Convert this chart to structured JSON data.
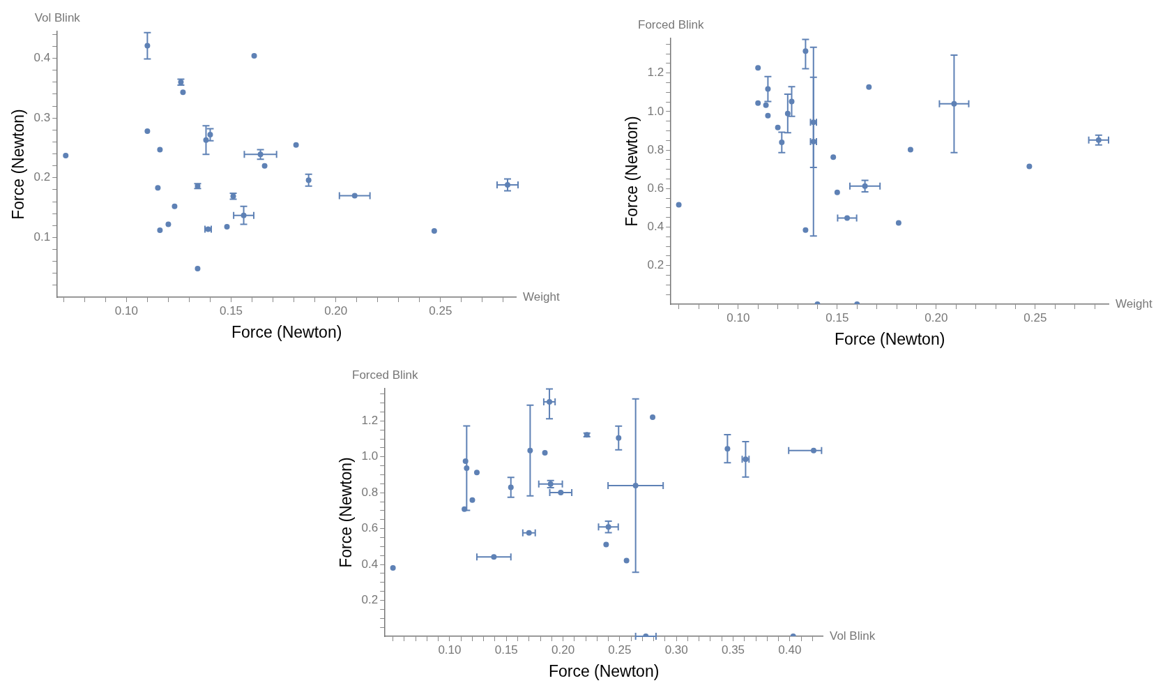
{
  "chart_data": [
    {
      "type": "scatter",
      "title": "Vol Blink",
      "xlabel": "Force (Newton)",
      "ylabel": "Force (Newton)",
      "annotations": [
        "Weight"
      ],
      "marker": "circle",
      "xlim": [
        0.067,
        0.286
      ],
      "ylim": [
        0,
        0.445
      ],
      "xticks": [
        {
          "value": 0.07,
          "label": null
        },
        {
          "value": 0.08,
          "label": null
        },
        {
          "value": 0.09,
          "label": null
        },
        {
          "value": 0.1,
          "label": "0.10"
        },
        {
          "value": 0.11,
          "label": null
        },
        {
          "value": 0.12,
          "label": null
        },
        {
          "value": 0.13,
          "label": null
        },
        {
          "value": 0.14,
          "label": null
        },
        {
          "value": 0.15,
          "label": "0.15"
        },
        {
          "value": 0.16,
          "label": null
        },
        {
          "value": 0.17,
          "label": null
        },
        {
          "value": 0.18,
          "label": null
        },
        {
          "value": 0.19,
          "label": null
        },
        {
          "value": 0.2,
          "label": "0.20"
        },
        {
          "value": 0.21,
          "label": null
        },
        {
          "value": 0.22,
          "label": null
        },
        {
          "value": 0.23,
          "label": null
        },
        {
          "value": 0.24,
          "label": null
        },
        {
          "value": 0.25,
          "label": "0.25"
        },
        {
          "value": 0.26,
          "label": null
        },
        {
          "value": 0.27,
          "label": null
        },
        {
          "value": 0.28,
          "label": null
        }
      ],
      "yticks": [
        {
          "value": 0.02,
          "label": null
        },
        {
          "value": 0.04,
          "label": null
        },
        {
          "value": 0.06,
          "label": null
        },
        {
          "value": 0.08,
          "label": null
        },
        0.1,
        {
          "value": 0.12,
          "label": null
        },
        {
          "value": 0.14,
          "label": null
        },
        {
          "value": 0.16,
          "label": null
        },
        {
          "value": 0.18,
          "label": null
        },
        0.2,
        {
          "value": 0.22,
          "label": null
        },
        {
          "value": 0.24,
          "label": null
        },
        {
          "value": 0.26,
          "label": null
        },
        {
          "value": 0.28,
          "label": null
        },
        0.3,
        {
          "value": 0.32,
          "label": null
        },
        {
          "value": 0.34,
          "label": null
        },
        {
          "value": 0.36,
          "label": null
        },
        {
          "value": 0.38,
          "label": null
        },
        0.4,
        {
          "value": 0.42,
          "label": null
        },
        {
          "value": 0.44,
          "label": null
        }
      ],
      "series": [
        {
          "color": "#5e81b5",
          "x": [
            0.11,
            0.161,
            0.126,
            0.127,
            0.11,
            0.116,
            0.071,
            0.138,
            0.14,
            0.164,
            0.166,
            0.181,
            0.187,
            0.134,
            0.115,
            0.151,
            0.123,
            0.156,
            0.209,
            0.282,
            0.12,
            0.116,
            0.139,
            0.148,
            0.134,
            0.247
          ],
          "values": [
            0.421,
            0.404,
            0.36,
            0.343,
            0.278,
            0.247,
            0.237,
            0.263,
            0.272,
            0.239,
            0.22,
            0.255,
            0.196,
            0.186,
            0.183,
            0.169,
            0.152,
            0.137,
            0.17,
            0.188,
            0.122,
            0.112,
            0.114,
            0.118,
            0.048,
            0.111
          ],
          "errors": [
            0.022,
            null,
            0.005,
            null,
            null,
            null,
            null,
            0.024,
            0.01,
            0.008,
            null,
            null,
            0.01,
            0.004,
            null,
            0.005,
            null,
            0.015,
            null,
            0.01,
            null,
            null,
            null,
            null,
            null,
            null
          ],
          "xerrors": [
            null,
            null,
            null,
            null,
            null,
            null,
            null,
            null,
            null,
            0.0077,
            null,
            null,
            null,
            null,
            null,
            null,
            null,
            0.0048,
            0.0073,
            0.005,
            null,
            null,
            0.0015,
            null,
            null,
            null
          ]
        }
      ]
    },
    {
      "type": "scatter",
      "title": "Forced Blink",
      "xlabel": "Force (Newton)",
      "ylabel": "Force (Newton)",
      "annotations": [
        "Weight"
      ],
      "marker": "circle",
      "xlim": [
        0.066,
        0.287
      ],
      "ylim": [
        0,
        1.38
      ],
      "xticks": [
        {
          "value": 0.07,
          "label": null
        },
        {
          "value": 0.08,
          "label": null
        },
        {
          "value": 0.09,
          "label": null
        },
        {
          "value": 0.1,
          "label": "0.10"
        },
        {
          "value": 0.11,
          "label": null
        },
        {
          "value": 0.12,
          "label": null
        },
        {
          "value": 0.13,
          "label": null
        },
        {
          "value": 0.14,
          "label": null
        },
        {
          "value": 0.15,
          "label": "0.15"
        },
        {
          "value": 0.16,
          "label": null
        },
        {
          "value": 0.17,
          "label": null
        },
        {
          "value": 0.18,
          "label": null
        },
        {
          "value": 0.19,
          "label": null
        },
        {
          "value": 0.2,
          "label": "0.20"
        },
        {
          "value": 0.21,
          "label": null
        },
        {
          "value": 0.22,
          "label": null
        },
        {
          "value": 0.23,
          "label": null
        },
        {
          "value": 0.24,
          "label": null
        },
        {
          "value": 0.25,
          "label": "0.25"
        },
        {
          "value": 0.26,
          "label": null
        },
        {
          "value": 0.27,
          "label": null
        },
        {
          "value": 0.28,
          "label": null
        }
      ],
      "yticks": [
        {
          "value": 0.05,
          "label": null
        },
        {
          "value": 0.1,
          "label": null
        },
        {
          "value": 0.15,
          "label": null
        },
        0.2,
        {
          "value": 0.25,
          "label": null
        },
        {
          "value": 0.3,
          "label": null
        },
        {
          "value": 0.35,
          "label": null
        },
        0.4,
        {
          "value": 0.45,
          "label": null
        },
        {
          "value": 0.5,
          "label": null
        },
        {
          "value": 0.55,
          "label": null
        },
        0.6,
        {
          "value": 0.65,
          "label": null
        },
        {
          "value": 0.7,
          "label": null
        },
        {
          "value": 0.75,
          "label": null
        },
        0.8,
        {
          "value": 0.85,
          "label": null
        },
        {
          "value": 0.9,
          "label": null
        },
        {
          "value": 0.95,
          "label": null
        },
        {
          "value": 1.0,
          "label": "1.0"
        },
        {
          "value": 1.05,
          "label": null
        },
        {
          "value": 1.1,
          "label": null
        },
        {
          "value": 1.15,
          "label": null
        },
        1.2,
        {
          "value": 1.25,
          "label": null
        },
        {
          "value": 1.3,
          "label": null
        },
        {
          "value": 1.35,
          "label": null
        }
      ],
      "series": [
        {
          "color": "#5e81b5",
          "x": [
            0.11,
            0.11,
            0.114,
            0.115,
            0.115,
            0.12,
            0.122,
            0.125,
            0.127,
            0.134,
            0.134,
            0.138,
            0.138,
            0.148,
            0.15,
            0.155,
            0.164,
            0.166,
            0.181,
            0.187,
            0.209,
            0.247,
            0.282,
            0.07,
            0.14,
            0.16
          ],
          "values": [
            1.227,
            1.044,
            1.033,
            1.117,
            0.979,
            0.917,
            0.84,
            0.99,
            1.052,
            1.314,
            0.385,
            0.944,
            0.844,
            0.763,
            0.58,
            0.447,
            0.613,
            1.127,
            0.422,
            0.802,
            1.04,
            0.715,
            0.852,
            0.516,
            0,
            0
          ],
          "errors": [
            null,
            null,
            null,
            0.065,
            null,
            null,
            0.053,
            0.1,
            0.077,
            [
              1.222,
              1.375
            ],
            null,
            0.234,
            0.49,
            null,
            null,
            null,
            0.03,
            null,
            null,
            null,
            0.253,
            null,
            0.025,
            null,
            null,
            null
          ],
          "xerrors": [
            null,
            null,
            null,
            null,
            null,
            null,
            null,
            null,
            null,
            null,
            null,
            0.0015,
            0.0015,
            null,
            null,
            0.0048,
            0.0076,
            null,
            null,
            null,
            0.0074,
            null,
            0.005,
            null,
            null,
            null
          ]
        }
      ]
    },
    {
      "type": "scatter",
      "title": "Forced Blink",
      "xlabel": "Force (Newton)",
      "ylabel": "Force (Newton)",
      "annotations": [
        "Vol Blink"
      ],
      "marker": "circle",
      "xlim": [
        0.043,
        0.429
      ],
      "ylim": [
        0,
        1.38
      ],
      "xticks": [
        {
          "value": 0.05,
          "label": null
        },
        {
          "value": 0.06,
          "label": null
        },
        {
          "value": 0.07,
          "label": null
        },
        {
          "value": 0.08,
          "label": null
        },
        {
          "value": 0.09,
          "label": null
        },
        {
          "value": 0.1,
          "label": "0.10"
        },
        {
          "value": 0.11,
          "label": null
        },
        {
          "value": 0.12,
          "label": null
        },
        {
          "value": 0.13,
          "label": null
        },
        {
          "value": 0.14,
          "label": null
        },
        {
          "value": 0.15,
          "label": "0.15"
        },
        {
          "value": 0.16,
          "label": null
        },
        {
          "value": 0.17,
          "label": null
        },
        {
          "value": 0.18,
          "label": null
        },
        {
          "value": 0.19,
          "label": null
        },
        {
          "value": 0.2,
          "label": "0.20"
        },
        {
          "value": 0.21,
          "label": null
        },
        {
          "value": 0.22,
          "label": null
        },
        {
          "value": 0.23,
          "label": null
        },
        {
          "value": 0.24,
          "label": null
        },
        {
          "value": 0.25,
          "label": "0.25"
        },
        {
          "value": 0.26,
          "label": null
        },
        {
          "value": 0.27,
          "label": null
        },
        {
          "value": 0.28,
          "label": null
        },
        {
          "value": 0.29,
          "label": null
        },
        {
          "value": 0.3,
          "label": "0.30"
        },
        {
          "value": 0.31,
          "label": null
        },
        {
          "value": 0.32,
          "label": null
        },
        {
          "value": 0.33,
          "label": null
        },
        {
          "value": 0.34,
          "label": null
        },
        {
          "value": 0.35,
          "label": "0.35"
        },
        {
          "value": 0.36,
          "label": null
        },
        {
          "value": 0.37,
          "label": null
        },
        {
          "value": 0.38,
          "label": null
        },
        {
          "value": 0.39,
          "label": null
        },
        {
          "value": 0.4,
          "label": "0.40"
        },
        {
          "value": 0.41,
          "label": null
        },
        {
          "value": 0.42,
          "label": null
        }
      ],
      "yticks": [
        {
          "value": 0.05,
          "label": null
        },
        {
          "value": 0.1,
          "label": null
        },
        {
          "value": 0.15,
          "label": null
        },
        0.2,
        {
          "value": 0.25,
          "label": null
        },
        {
          "value": 0.3,
          "label": null
        },
        {
          "value": 0.35,
          "label": null
        },
        0.4,
        {
          "value": 0.45,
          "label": null
        },
        {
          "value": 0.5,
          "label": null
        },
        {
          "value": 0.55,
          "label": null
        },
        0.6,
        {
          "value": 0.65,
          "label": null
        },
        {
          "value": 0.7,
          "label": null
        },
        {
          "value": 0.75,
          "label": null
        },
        0.8,
        {
          "value": 0.85,
          "label": null
        },
        {
          "value": 0.9,
          "label": null
        },
        {
          "value": 0.95,
          "label": null
        },
        {
          "value": 1.0,
          "label": "1.0"
        },
        {
          "value": 1.05,
          "label": null
        },
        {
          "value": 1.1,
          "label": null
        },
        {
          "value": 1.15,
          "label": null
        },
        1.2,
        {
          "value": 1.25,
          "label": null
        },
        {
          "value": 1.3,
          "label": null
        },
        {
          "value": 1.35,
          "label": null
        }
      ],
      "series": [
        {
          "color": "#5e81b5",
          "x": [
            0.05,
            0.113,
            0.114,
            0.115,
            0.12,
            0.124,
            0.139,
            0.154,
            0.17,
            0.171,
            0.184,
            0.188,
            0.189,
            0.198,
            0.221,
            0.238,
            0.24,
            0.249,
            0.256,
            0.264,
            0.279,
            0.345,
            0.361,
            0.421,
            0.273,
            0.403
          ],
          "values": [
            0.381,
            0.708,
            0.976,
            0.937,
            0.759,
            0.913,
            0.442,
            0.83,
            0.576,
            1.035,
            1.022,
            1.306,
            0.848,
            0.801,
            1.122,
            0.511,
            0.609,
            1.105,
            0.422,
            0.84,
            1.221,
            1.045,
            0.986,
            1.035,
            0,
            0
          ],
          "errors": [
            null,
            null,
            null,
            0.235,
            null,
            null,
            null,
            0.055,
            null,
            0.253,
            null,
            [
              1.212,
              1.378
            ],
            0.02,
            null,
            0.01,
            null,
            0.032,
            0.066,
            null,
            0.483,
            null,
            0.078,
            0.099,
            null,
            null,
            null
          ],
          "xerrors": [
            null,
            null,
            null,
            null,
            null,
            null,
            0.015,
            null,
            0.0055,
            null,
            null,
            0.005,
            0.0104,
            0.0097,
            null,
            null,
            0.0087,
            null,
            null,
            0.0243,
            null,
            null,
            0.003,
            [
              0.399,
              0.428
            ],
            0.009,
            null
          ]
        }
      ]
    }
  ]
}
